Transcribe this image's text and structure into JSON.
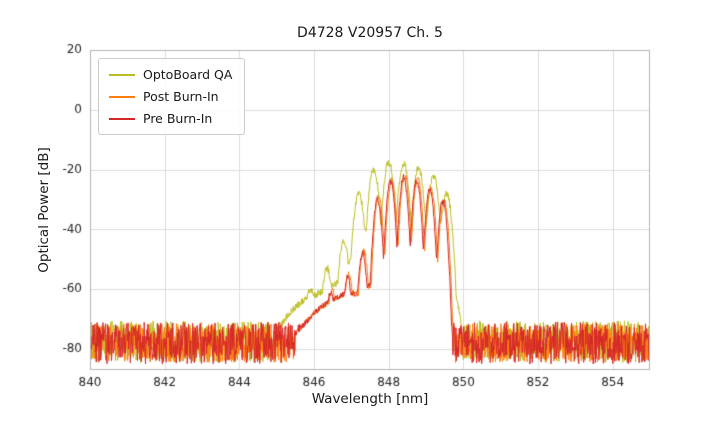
{
  "chart_data": {
    "type": "line",
    "title": "D4728 V20957 Ch. 5",
    "xlabel": "Wavelength [nm]",
    "ylabel": "Optical Power [dB]",
    "xlim": [
      840,
      855
    ],
    "ylim": [
      -87,
      20
    ],
    "xticks": [
      840,
      842,
      844,
      846,
      848,
      850,
      852,
      854
    ],
    "yticks": [
      20,
      0,
      -20,
      -40,
      -60,
      -80
    ],
    "grid": true,
    "legend_position": "upper left",
    "sample_step_nm": 0.012,
    "series": [
      {
        "name": "OptoBoard QA",
        "color": "#bcbd22",
        "noise": {
          "base": -77.5,
          "amp": 7,
          "seed": 101
        },
        "jitter": 1.2,
        "peak_width": 0.2,
        "peak_falloff": 20,
        "envelope": [
          [
            845.0,
            -74
          ],
          [
            845.4,
            -67
          ],
          [
            845.8,
            -63
          ],
          [
            846.2,
            -61
          ],
          [
            846.6,
            -58
          ],
          [
            847.0,
            -50
          ],
          [
            847.3,
            -42
          ],
          [
            847.6,
            -38
          ],
          [
            849.4,
            -38
          ],
          [
            849.7,
            -55
          ],
          [
            849.95,
            -72
          ]
        ],
        "peaks": [
          [
            845.9,
            -60
          ],
          [
            846.35,
            -53
          ],
          [
            846.8,
            -44
          ],
          [
            847.2,
            -28
          ],
          [
            847.6,
            -20
          ],
          [
            848.0,
            -17.5
          ],
          [
            848.4,
            -18
          ],
          [
            848.8,
            -19.5
          ],
          [
            849.2,
            -22
          ],
          [
            849.55,
            -28
          ]
        ]
      },
      {
        "name": "Post Burn-In",
        "color": "#ff7f0e",
        "noise": {
          "base": -78,
          "amp": 6.5,
          "seed": 202
        },
        "jitter": 1.0,
        "peak_width": 0.2,
        "peak_falloff": 30,
        "envelope": [
          [
            845.5,
            -75
          ],
          [
            846.0,
            -68
          ],
          [
            846.4,
            -64
          ],
          [
            846.9,
            -61
          ],
          [
            847.3,
            -62
          ],
          [
            847.7,
            -55
          ],
          [
            848.1,
            -50
          ],
          [
            849.2,
            -50
          ],
          [
            849.5,
            -57
          ],
          [
            849.7,
            -76
          ]
        ],
        "peaks": [
          [
            846.48,
            -60
          ],
          [
            846.93,
            -55
          ],
          [
            847.33,
            -47
          ],
          [
            847.73,
            -29
          ],
          [
            848.08,
            -23.5
          ],
          [
            848.43,
            -22
          ],
          [
            848.78,
            -23
          ],
          [
            849.13,
            -26
          ],
          [
            849.48,
            -30
          ]
        ]
      },
      {
        "name": "Pre Burn-In",
        "color": "#d62728",
        "noise": {
          "base": -78,
          "amp": 7,
          "seed": 303
        },
        "jitter": 1.0,
        "peak_width": 0.2,
        "peak_falloff": 30,
        "envelope": [
          [
            845.5,
            -75
          ],
          [
            846.0,
            -68
          ],
          [
            846.4,
            -64
          ],
          [
            846.9,
            -61
          ],
          [
            847.3,
            -62
          ],
          [
            847.7,
            -55
          ],
          [
            848.1,
            -50
          ],
          [
            849.2,
            -50
          ],
          [
            849.5,
            -57
          ],
          [
            849.68,
            -76
          ]
        ],
        "peaks": [
          [
            846.45,
            -61
          ],
          [
            846.9,
            -56
          ],
          [
            847.3,
            -48
          ],
          [
            847.7,
            -30
          ],
          [
            848.05,
            -24
          ],
          [
            848.4,
            -22.5
          ],
          [
            848.75,
            -23.5
          ],
          [
            849.1,
            -26.5
          ],
          [
            849.45,
            -30.5
          ]
        ]
      }
    ]
  }
}
